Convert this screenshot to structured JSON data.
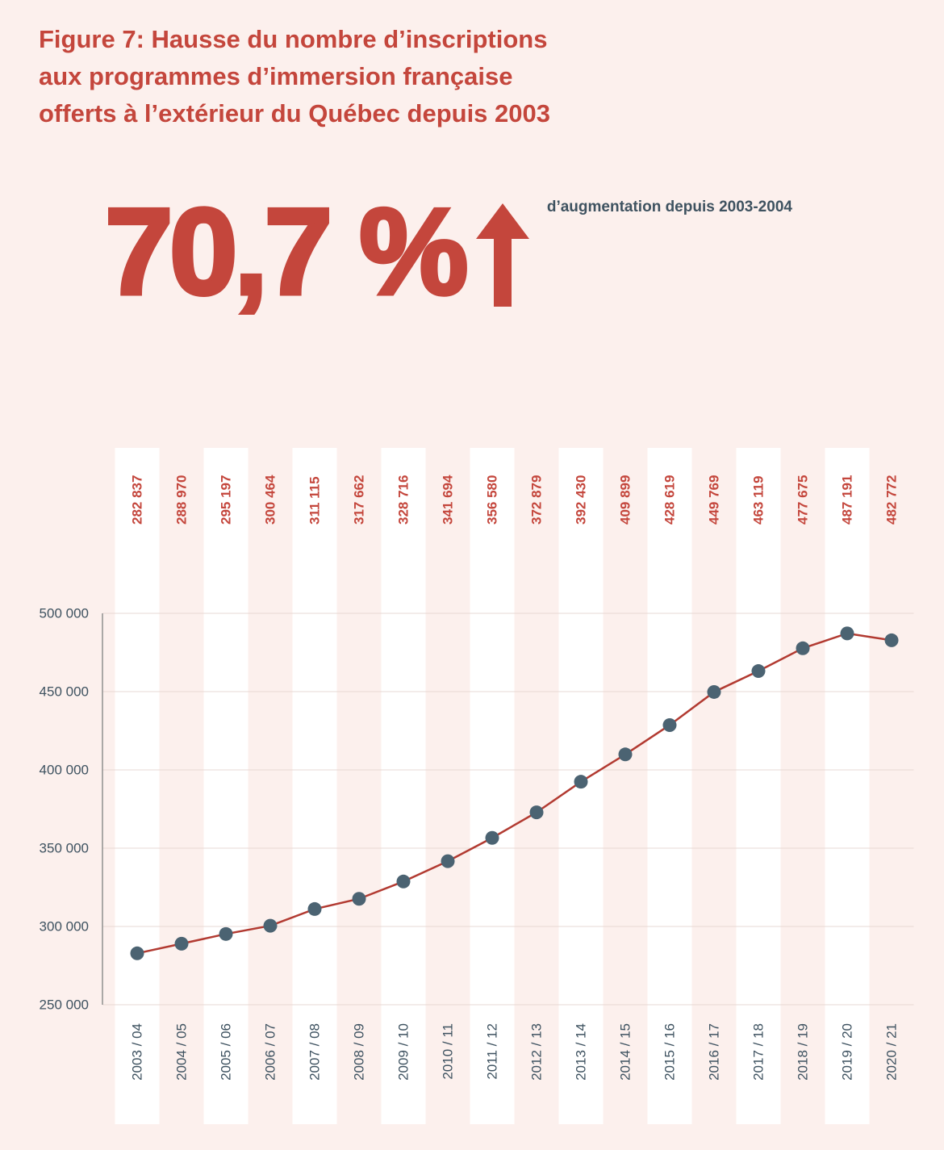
{
  "figure": {
    "title": "Figure 7: Hausse du nombre d’inscriptions\naux programmes d’immersion française\nofferts à l’extérieur du Québec depuis 2003"
  },
  "stat": {
    "value": "70,7 %",
    "caption": "d’augmentation depuis 2003-2004"
  },
  "colors": {
    "red": "#c4463c",
    "line_red": "#b23a31",
    "dot_slate": "#4b6372",
    "label_slate": "#3e5260",
    "background": "#fcf0ed",
    "stripe_white": "#ffffff",
    "gridline": "#e7d8d4",
    "axis": "#8f8f8f"
  },
  "chart_data": {
    "type": "line",
    "title": "Hausse du nombre d’inscriptions aux programmes d’immersion française offerts à l’extérieur du Québec depuis 2003",
    "categories": [
      "2003 / 04",
      "2004 / 05",
      "2005 / 06",
      "2006 / 07",
      "2007 / 08",
      "2008 / 09",
      "2009 / 10",
      "2010 / 11",
      "2011 / 12",
      "2012 / 13",
      "2013 / 14",
      "2014 / 15",
      "2015 / 16",
      "2016 / 17",
      "2017 / 18",
      "2018 / 19",
      "2019 / 20",
      "2020 / 21"
    ],
    "values": [
      282837,
      288970,
      295197,
      300464,
      311115,
      317662,
      328716,
      341694,
      356580,
      372879,
      392430,
      409899,
      428619,
      449769,
      463119,
      477675,
      487191,
      482772
    ],
    "value_labels": [
      "282 837",
      "288 970",
      "295 197",
      "300 464",
      "311 115",
      "317 662",
      "328 716",
      "341 694",
      "356 580",
      "372 879",
      "392 430",
      "409 899",
      "428 619",
      "449 769",
      "463 119",
      "477 675",
      "487 191",
      "482 772"
    ],
    "xlabel": "",
    "ylabel": "",
    "ylim": [
      250000,
      500000
    ],
    "ytick_step": 50000,
    "yticks": [
      "250 000",
      "300 000",
      "350 000",
      "400 000",
      "450 000",
      "500 000"
    ],
    "grid": "horizontal",
    "legend": "none"
  }
}
